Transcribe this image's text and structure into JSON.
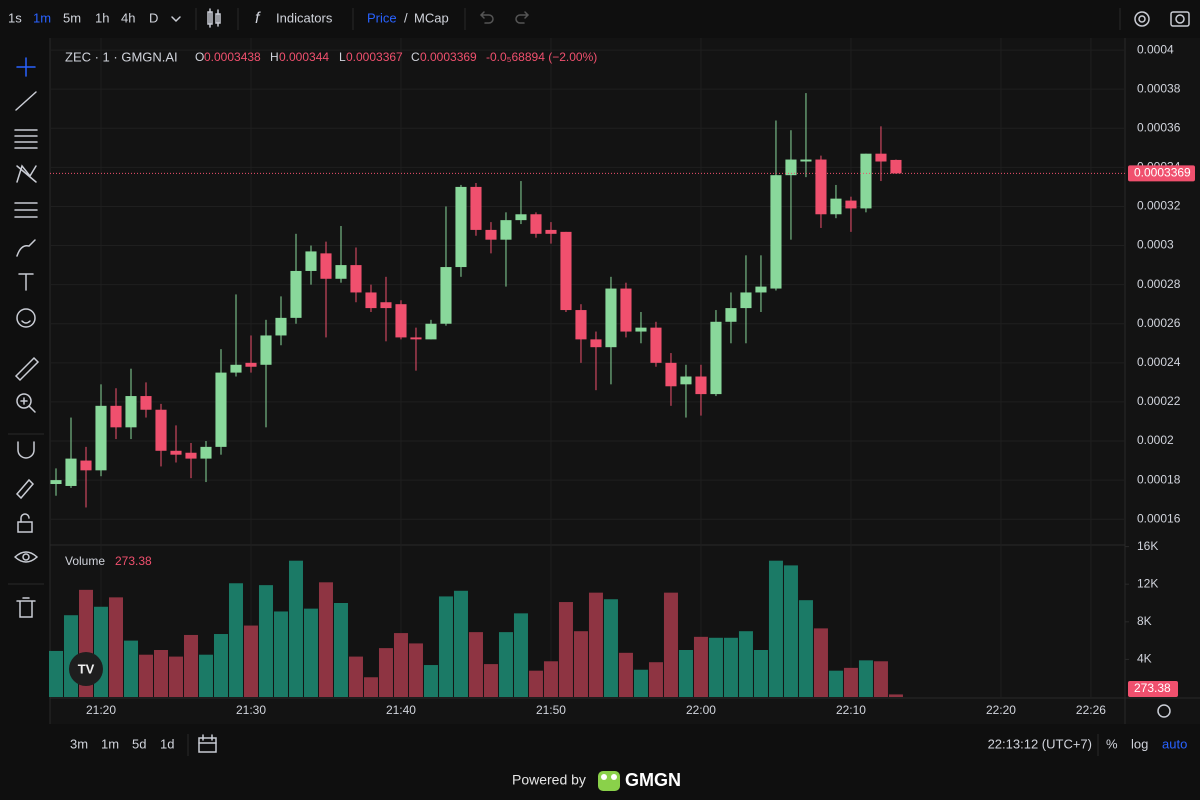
{
  "toolbar": {
    "intervals": [
      "1s",
      "1m",
      "5m",
      "1h",
      "4h",
      "D"
    ],
    "indicators": "Indicators",
    "price": "Price",
    "slash": "/",
    "mcap": "MCap"
  },
  "chart_data": {
    "type": "candlestick",
    "symbol": "ZEC · 1 · GMGN.AI",
    "open_label": "O",
    "high_label": "H",
    "low_label": "L",
    "close_label": "C",
    "change": "-0.0₅68894 (−2.00%)",
    "volume_title": "Volume",
    "open": [
      0.000178,
      0.000177,
      0.00019,
      0.000185,
      0.000218,
      0.000207,
      0.000223,
      0.000216,
      0.000195,
      0.000194,
      0.000191,
      0.000197,
      0.000235,
      0.00024,
      0.000239,
      0.000254,
      0.000263,
      0.000287,
      0.000296,
      0.000283,
      0.00029,
      0.000276,
      0.000271,
      0.00027,
      0.000253,
      0.000252,
      0.00026,
      0.000289,
      0.00033,
      0.000308,
      0.000303,
      0.000313,
      0.000316,
      0.000308,
      0.000307,
      0.000267,
      0.000252,
      0.000248,
      0.000278,
      0.000256,
      0.000258,
      0.00024,
      0.000229,
      0.000233,
      0.000224,
      0.000261,
      0.000268,
      0.000276,
      0.000278,
      0.000336,
      0.000343,
      0.000344,
      0.000316,
      0.000323,
      0.000319,
      0.000347,
      0.0003438
    ],
    "high": [
      0.000186,
      0.000212,
      0.000197,
      0.000229,
      0.000227,
      0.000237,
      0.00023,
      0.000219,
      0.000208,
      0.000199,
      0.0002,
      0.000247,
      0.000275,
      0.000254,
      0.000262,
      0.000274,
      0.000306,
      0.0003,
      0.000302,
      0.00031,
      0.000299,
      0.00028,
      0.000284,
      0.000272,
      0.000258,
      0.000262,
      0.00032,
      0.000331,
      0.000332,
      0.000312,
      0.000317,
      0.000333,
      0.000317,
      0.000312,
      0.000307,
      0.00027,
      0.000256,
      0.000284,
      0.000281,
      0.000266,
      0.000261,
      0.000245,
      0.000239,
      0.000239,
      0.000267,
      0.000276,
      0.000295,
      0.000295,
      0.000364,
      0.000359,
      0.000378,
      0.000346,
      0.000331,
      0.000325,
      0.000347,
      0.000361,
      0.000344
    ],
    "low": [
      0.000172,
      0.000176,
      0.000166,
      0.000182,
      0.000201,
      0.000201,
      0.000212,
      0.000187,
      0.000189,
      0.000181,
      0.000179,
      0.000193,
      0.000233,
      0.000235,
      0.000207,
      0.000249,
      0.00026,
      0.00028,
      0.000253,
      0.000281,
      0.000271,
      0.000266,
      0.000251,
      0.000252,
      0.000236,
      0.000252,
      0.000259,
      0.000284,
      0.000305,
      0.000296,
      0.000279,
      0.000311,
      0.000304,
      0.000301,
      0.000266,
      0.00024,
      0.000226,
      0.000229,
      0.000253,
      0.00025,
      0.000238,
      0.000218,
      0.000212,
      0.000213,
      0.000223,
      0.00025,
      0.00025,
      0.000266,
      0.000277,
      0.000303,
      0.000335,
      0.000309,
      0.000314,
      0.000307,
      0.000317,
      0.000333,
      0.0003367
    ],
    "close": [
      0.00018,
      0.000191,
      0.000185,
      0.000218,
      0.000207,
      0.000223,
      0.000216,
      0.000195,
      0.000193,
      0.000191,
      0.000197,
      0.000235,
      0.000239,
      0.000238,
      0.000254,
      0.000263,
      0.000287,
      0.000297,
      0.000283,
      0.00029,
      0.000276,
      0.000268,
      0.000268,
      0.000253,
      0.000252,
      0.00026,
      0.000289,
      0.00033,
      0.000308,
      0.000303,
      0.000313,
      0.000316,
      0.000306,
      0.000306,
      0.000267,
      0.000252,
      0.000248,
      0.000278,
      0.000256,
      0.000258,
      0.00024,
      0.000228,
      0.000233,
      0.000224,
      0.000261,
      0.000268,
      0.000276,
      0.000279,
      0.000336,
      0.000344,
      0.000344,
      0.000316,
      0.000324,
      0.000319,
      0.000347,
      0.000343,
      0.0003369
    ],
    "volume": [
      4900,
      8700,
      11400,
      9600,
      10600,
      6000,
      4500,
      5000,
      4300,
      6600,
      4500,
      6700,
      12100,
      7600,
      11900,
      9100,
      14500,
      9400,
      12200,
      10000,
      4300,
      2100,
      5200,
      6800,
      5700,
      3400,
      10700,
      11300,
      6900,
      3500,
      6900,
      8900,
      2800,
      3800,
      10100,
      7000,
      11100,
      10400,
      4700,
      2900,
      3700,
      11100,
      5000,
      6400,
      6300,
      6300,
      7000,
      5000,
      14500,
      14000,
      10300,
      7300,
      2800,
      3100,
      3900,
      3800,
      273.38
    ],
    "up_color": "#89d89b",
    "down_color": "#f0506e",
    "volume_up_color": "#1b7a66",
    "volume_down_color": "#8e3442",
    "xlim": [
      -0.4,
      71.27
    ],
    "xticks": [
      {
        "value": 3,
        "label": "21:20"
      },
      {
        "value": 13,
        "label": "21:30"
      },
      {
        "value": 23,
        "label": "21:40"
      },
      {
        "value": 33,
        "label": "21:50"
      },
      {
        "value": 43,
        "label": "22:00"
      },
      {
        "value": 53,
        "label": "22:10"
      },
      {
        "value": 63,
        "label": "22:20"
      },
      {
        "value": 69,
        "label": "22:26"
      }
    ],
    "ylim": [
      0.0001468,
      0.0004026
    ],
    "yticks": [
      0.00016,
      0.00018,
      0.0002,
      0.00022,
      0.00024,
      0.00026,
      0.00028,
      0.0003,
      0.00032,
      0.00034,
      0.00036,
      0.00038,
      0.0004
    ],
    "y2lim": [
      0,
      16170
    ],
    "y2ticks": [
      {
        "value": 4000,
        "label": "4K"
      },
      {
        "value": 8000,
        "label": "8K"
      },
      {
        "value": 12000,
        "label": "12K"
      },
      {
        "value": 16000,
        "label": "16K"
      }
    ],
    "grid": true
  },
  "footer": {
    "ranges": [
      "3m",
      "1m",
      "5d",
      "1d"
    ],
    "clock": "22:13:12 (UTC+7)",
    "percent": "%",
    "log": "log",
    "auto": "auto",
    "powered": "Powered by",
    "brand": "GMGN"
  }
}
